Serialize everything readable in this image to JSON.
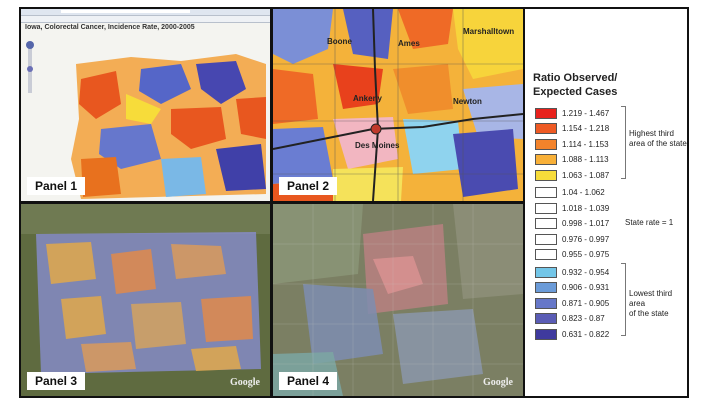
{
  "panels": [
    {
      "label": "Panel 1",
      "title": "Iowa, Colorectal Cancer, Incidence Rate, 2000-2005"
    },
    {
      "label": "Panel 2",
      "cities": [
        "Boone",
        "Ames",
        "Marshalltown",
        "Ankeny",
        "Newton",
        "Des Moines"
      ]
    },
    {
      "label": "Panel 3",
      "attribution": "Google"
    },
    {
      "label": "Panel 4",
      "attribution": "Google"
    }
  ],
  "legend": {
    "title_line1": "Ratio Observed/",
    "title_line2": "Expected Cases",
    "items": [
      {
        "range": "1.219 - 1.467",
        "color": "#e8211c"
      },
      {
        "range": "1.154 - 1.218",
        "color": "#ee5a24"
      },
      {
        "range": "1.114 - 1.153",
        "color": "#f3832b"
      },
      {
        "range": "1.088 - 1.113",
        "color": "#f8b038"
      },
      {
        "range": "1.063 - 1.087",
        "color": "#f7dc3a"
      },
      {
        "range": "1.04 - 1.062",
        "color": "#ffffff"
      },
      {
        "range": "1.018 - 1.039",
        "color": "#ffffff"
      },
      {
        "range": "0.998 - 1.017",
        "color": "#ffffff"
      },
      {
        "range": "0.976 - 0.997",
        "color": "#ffffff"
      },
      {
        "range": "0.955 - 0.975",
        "color": "#ffffff"
      },
      {
        "range": "0.932 - 0.954",
        "color": "#73c6e8"
      },
      {
        "range": "0.906 - 0.931",
        "color": "#6b9bd8"
      },
      {
        "range": "0.871 - 0.905",
        "color": "#6677c8"
      },
      {
        "range": "0.823 - 0.87",
        "color": "#5a5cb5"
      },
      {
        "range": "0.631 - 0.822",
        "color": "#3f3a9e"
      }
    ],
    "note_high_line1": "Highest third",
    "note_high_line2": "area of the state",
    "note_state": "State rate = 1",
    "note_low_line1": "Lowest third area",
    "note_low_line2": "of the state"
  }
}
